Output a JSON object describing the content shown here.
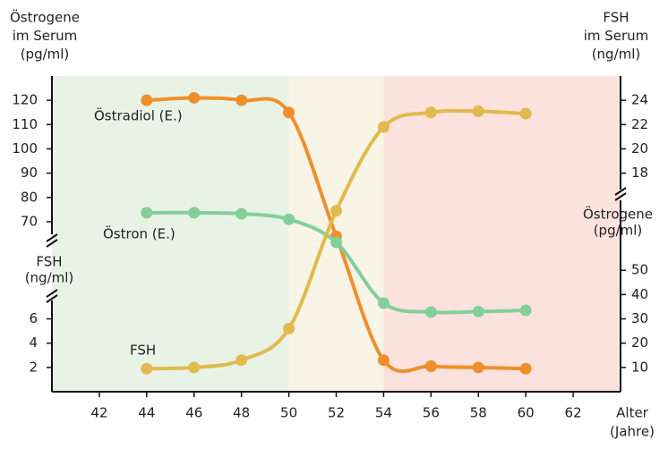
{
  "chart_data": {
    "type": "line",
    "x": [
      44,
      46,
      48,
      50,
      52,
      54,
      56,
      58,
      60
    ],
    "xlim": [
      40,
      64
    ],
    "xticks": [
      42,
      44,
      46,
      48,
      50,
      52,
      54,
      56,
      58,
      60,
      62
    ],
    "xlabel": [
      "Alter",
      "(Jahre)"
    ],
    "ylim": [
      0,
      130
    ],
    "y2lim": [
      0,
      26
    ],
    "left_axis": [
      {
        "title": [
          "Östrogene",
          "im Serum",
          "(pg/ml)"
        ],
        "ticks": [
          70,
          80,
          90,
          100,
          110,
          120
        ]
      },
      {
        "title": [
          "FSH",
          "(ng/ml)"
        ],
        "axis": "y2",
        "ticks": [
          2,
          4,
          6
        ]
      }
    ],
    "right_axis": [
      {
        "title": [
          "FSH",
          "im Serum",
          "(ng/ml)"
        ],
        "axis": "y2",
        "ticks": [
          18,
          20,
          22,
          24
        ]
      },
      {
        "title": [
          "Östrogene",
          "(pg/ml)"
        ],
        "ticks": [
          10,
          20,
          30,
          40,
          50
        ]
      }
    ],
    "phases": [
      {
        "from": 40,
        "to": 50,
        "color": "#e8f3e6"
      },
      {
        "from": 50,
        "to": 54,
        "color": "#f8f4e6"
      },
      {
        "from": 54,
        "to": 64,
        "color": "#fbe2dc"
      }
    ],
    "series": [
      {
        "name": "Östradiol (E.)",
        "color": "#ef8f2c",
        "values": [
          120,
          121,
          120,
          115,
          64,
          13,
          10.5,
          10,
          9.5
        ]
      },
      {
        "name": "Östron (E.)",
        "color": "#82cf9c",
        "values": [
          73.7,
          73.7,
          73.3,
          71,
          61.5,
          36.5,
          32.8,
          33,
          33.5
        ]
      },
      {
        "name": "FSH",
        "color": "#e1b94e",
        "axis": "y2",
        "values": [
          1.9,
          2.0,
          2.6,
          5.2,
          14.9,
          21.8,
          23.0,
          23.1,
          22.9
        ]
      }
    ]
  }
}
